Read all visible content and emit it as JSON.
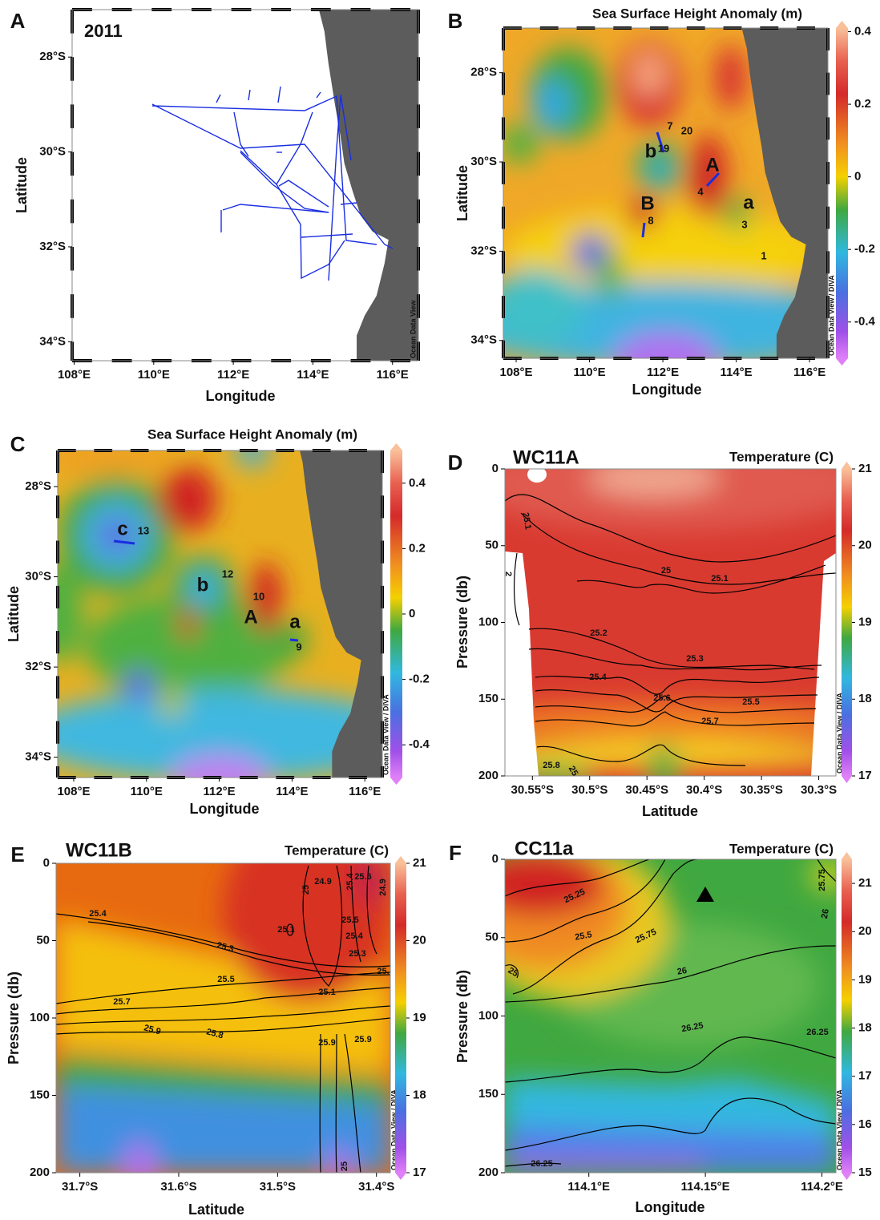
{
  "chart_data": [
    {
      "type": "map",
      "panel": "A",
      "title": "2011",
      "credit": "Ocean Data View",
      "xlabel": "Longitude",
      "ylabel": "Latitude",
      "xlim": [
        107.95,
        116.65
      ],
      "ylim": [
        -34.4,
        -27
      ],
      "xticks": [
        {
          "value": 108,
          "label": "108°E"
        },
        {
          "value": 110,
          "label": "110°E"
        },
        {
          "value": 112,
          "label": "112°E"
        },
        {
          "value": 114,
          "label": "114°E"
        },
        {
          "value": 116,
          "label": "116°E"
        }
      ],
      "yticks": [
        {
          "value": -28,
          "label": "28°S"
        },
        {
          "value": -30,
          "label": "30°S"
        },
        {
          "value": -32,
          "label": "32°S"
        },
        {
          "value": -34,
          "label": "34°S"
        }
      ]
    },
    {
      "type": "map",
      "panel": "B",
      "colorbar_title": "Sea Surface Height Anomaly (m)",
      "credit": "Ocean Data View / DIVA",
      "xlabel": "Longitude",
      "ylabel": "Latitude",
      "xlim": [
        107.65,
        116.5
      ],
      "ylim": [
        -34.4,
        -27
      ],
      "xticks": [
        {
          "value": 108,
          "label": "108°E"
        },
        {
          "value": 110,
          "label": "110°E"
        },
        {
          "value": 112,
          "label": "112°E"
        },
        {
          "value": 114,
          "label": "114°E"
        },
        {
          "value": 116,
          "label": "116°E"
        }
      ],
      "yticks": [
        {
          "value": -28,
          "label": "28°S"
        },
        {
          "value": -30,
          "label": "30°S"
        },
        {
          "value": -32,
          "label": "32°S"
        },
        {
          "value": -34,
          "label": "34°S"
        }
      ],
      "clim": [
        -0.5,
        0.41
      ],
      "cticks": [
        0.4,
        0.2,
        0,
        -0.2,
        -0.4
      ],
      "annotations": [
        "b",
        "7",
        "20",
        "19",
        "A",
        "4",
        "B",
        "8",
        "a",
        "3",
        "1"
      ]
    },
    {
      "type": "map",
      "panel": "C",
      "colorbar_title": "Sea Surface Height Anomaly (m)",
      "credit": "Ocean Data View / DIVA",
      "xlabel": "Longitude",
      "ylabel": "Latitude",
      "xlim": [
        107.56,
        116.48
      ],
      "ylim": [
        -34.45,
        -27.2
      ],
      "xticks": [
        {
          "value": 108,
          "label": "108°E"
        },
        {
          "value": 110,
          "label": "110°E"
        },
        {
          "value": 112,
          "label": "112°E"
        },
        {
          "value": 114,
          "label": "114°E"
        },
        {
          "value": 116,
          "label": "116°E"
        }
      ],
      "yticks": [
        {
          "value": -28,
          "label": "28°S"
        },
        {
          "value": -30,
          "label": "30°S"
        },
        {
          "value": -32,
          "label": "32°S"
        },
        {
          "value": -34,
          "label": "34°S"
        }
      ],
      "clim": [
        -0.5,
        0.5
      ],
      "cticks": [
        0.4,
        0.2,
        0,
        -0.2,
        -0.4
      ],
      "annotations": [
        "c",
        "13",
        "b",
        "12",
        "10",
        "A",
        "a",
        "9"
      ]
    },
    {
      "type": "section",
      "panel": "D",
      "title": "WC11A",
      "colorbar_title": "Temperature (C)",
      "credit": "Ocean Data View / DIVA",
      "xlabel": "Latitude",
      "ylabel": "Pressure (db)",
      "xlim": [
        -30.574,
        -30.285
      ],
      "ylim": [
        200,
        0
      ],
      "xticks": [
        {
          "value": -30.55,
          "label": "30.55°S"
        },
        {
          "value": -30.5,
          "label": "30.5°S"
        },
        {
          "value": -30.45,
          "label": "30.45°S"
        },
        {
          "value": -30.4,
          "label": "30.4°S"
        },
        {
          "value": -30.35,
          "label": "30.35°S"
        },
        {
          "value": -30.3,
          "label": "30.3°S"
        }
      ],
      "yticks": [
        0,
        50,
        100,
        150,
        200
      ],
      "clim": [
        17,
        21
      ],
      "cticks": [
        21,
        20,
        19,
        18,
        17
      ],
      "contour_labels": [
        "25.1",
        "2",
        "25",
        "25.1",
        "25.2",
        "25.3",
        "25.4",
        "25.6",
        "25.5",
        "25.7",
        "25.8",
        "25"
      ]
    },
    {
      "type": "section",
      "panel": "E",
      "title": "WC11B",
      "colorbar_title": "Temperature (C)",
      "credit": "Ocean Data View / DIVA",
      "xlabel": "Latitude",
      "ylabel": "Pressure (db)",
      "xlim": [
        -31.724,
        -31.386
      ],
      "ylim": [
        200,
        0
      ],
      "xticks": [
        {
          "value": -31.7,
          "label": "31.7°S"
        },
        {
          "value": -31.6,
          "label": "31.6°S"
        },
        {
          "value": -31.5,
          "label": "31.5°S"
        },
        {
          "value": -31.4,
          "label": "31.4°S"
        }
      ],
      "yticks": [
        0,
        50,
        100,
        150,
        200
      ],
      "clim": [
        17,
        21
      ],
      "cticks": [
        21,
        20,
        19,
        18,
        17
      ],
      "contour_labels": [
        "25.4",
        "25.3",
        "25.1",
        "25.1",
        "25.5",
        "25.7",
        "25.8",
        "25.9",
        "25.9",
        "25.9",
        "24.9",
        "25",
        "25.4",
        "25.5",
        "25.4",
        "25.3",
        "25.6",
        "24.9",
        "25",
        "25."
      ]
    },
    {
      "type": "section",
      "panel": "F",
      "title": "CC11a",
      "colorbar_title": "Temperature (C)",
      "credit": "Ocean Data View / DIVA",
      "xlabel": "Longitude",
      "ylabel": "Pressure (db)",
      "xlim": [
        114.064,
        114.206
      ],
      "ylim": [
        200,
        0
      ],
      "xticks": [
        {
          "value": 114.1,
          "label": "114.1°E"
        },
        {
          "value": 114.15,
          "label": "114.15°E"
        },
        {
          "value": 114.2,
          "label": "114.2°E"
        }
      ],
      "yticks": [
        0,
        50,
        100,
        150,
        200
      ],
      "clim": [
        15,
        21.5
      ],
      "cticks": [
        21,
        20,
        19,
        18,
        17,
        16,
        15
      ],
      "contour_labels": [
        "25.25",
        "25.5",
        "25.75",
        "25",
        "26",
        "26",
        "26.25",
        "26.25",
        "26.25",
        "25.75"
      ]
    }
  ]
}
